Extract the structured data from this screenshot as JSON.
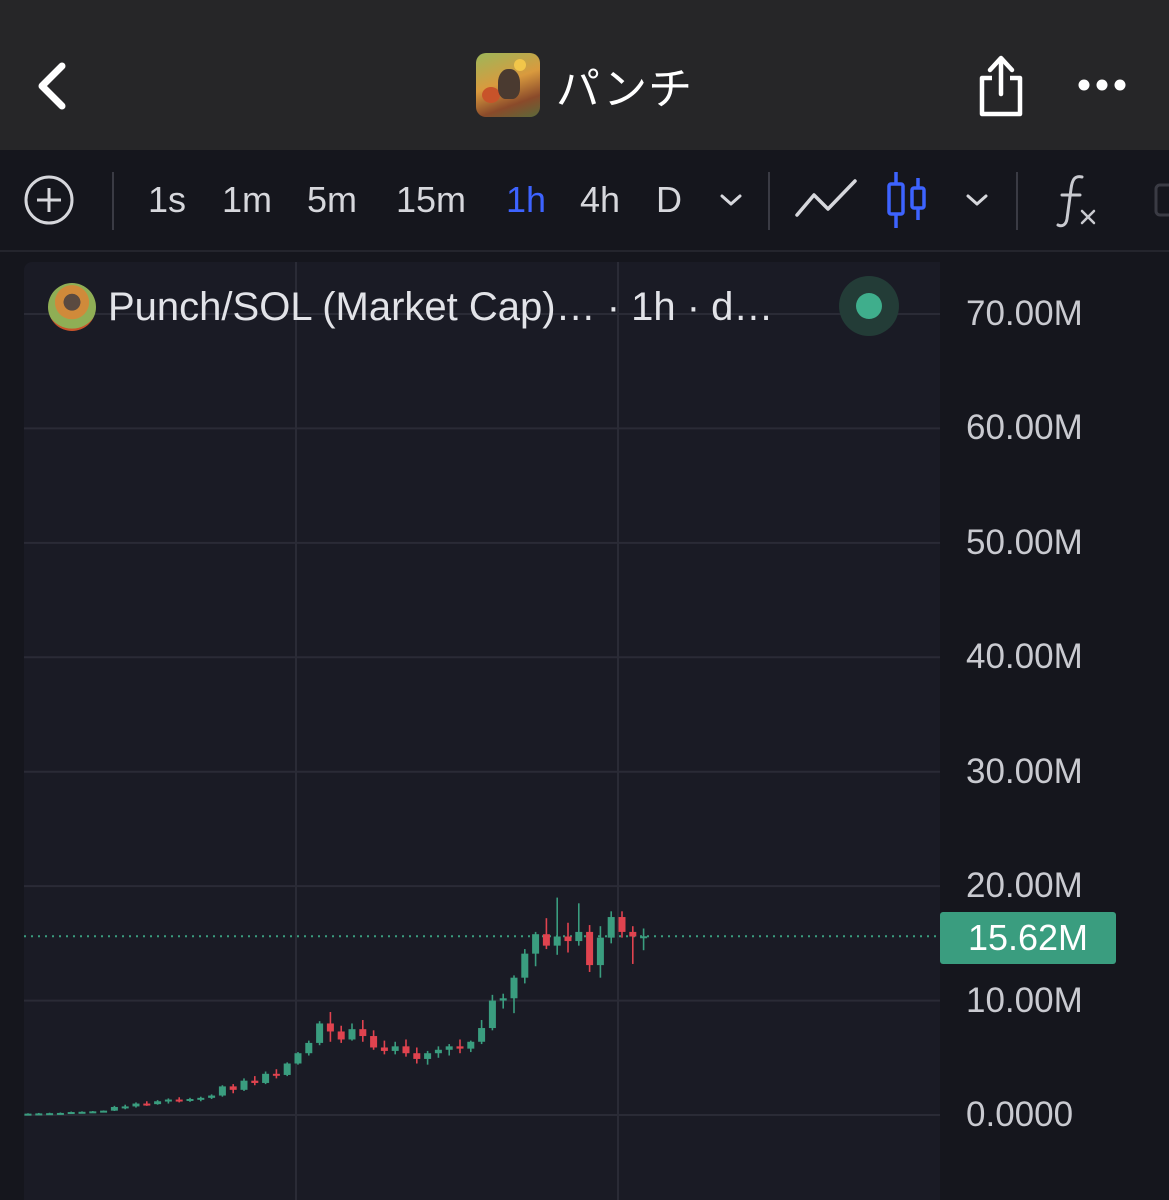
{
  "header": {
    "title": "パンチ",
    "back_icon": "chevron-left-icon",
    "share_icon": "share-icon",
    "more_icon": "ellipsis-icon"
  },
  "toolbar": {
    "add_icon": "add-circle-icon",
    "timeframes": [
      {
        "label": "1s",
        "active": false
      },
      {
        "label": "1m",
        "active": false
      },
      {
        "label": "5m",
        "active": false
      },
      {
        "label": "15m",
        "active": false
      },
      {
        "label": "1h",
        "active": true
      },
      {
        "label": "4h",
        "active": false
      },
      {
        "label": "D",
        "active": false
      }
    ],
    "timeframe_dropdown_icon": "chevron-down-icon",
    "line_chart_icon": "line-chart-icon",
    "candle_chart_icon": "candlestick-icon",
    "chart_type_dropdown_icon": "chevron-down-icon",
    "indicators_icon": "function-icon",
    "active_color": "#3d63ff"
  },
  "chart": {
    "legend": "Punch/SOL (Market Cap)…  · 1h · d…",
    "live_indicator_color": "#3fae8c",
    "current_price_label": "15.62M",
    "up_color": "#3a9d7f",
    "down_color": "#e0434f"
  },
  "chart_data": {
    "type": "candlestick",
    "y_tick_labels": [
      "70.00M",
      "60.00M",
      "50.00M",
      "40.00M",
      "30.00M",
      "20.00M",
      "10.00M",
      "0.0000"
    ],
    "y_ticks": [
      70,
      60,
      50,
      40,
      30,
      20,
      10,
      0
    ],
    "ylim": [
      -3.5,
      75
    ],
    "units": "M",
    "current_price": 15.62,
    "candles": [
      [
        0.1,
        0.15,
        0.05,
        0.12
      ],
      [
        0.12,
        0.18,
        0.08,
        0.14
      ],
      [
        0.14,
        0.2,
        0.1,
        0.16
      ],
      [
        0.16,
        0.22,
        0.12,
        0.18
      ],
      [
        0.18,
        0.3,
        0.15,
        0.26
      ],
      [
        0.26,
        0.32,
        0.2,
        0.28
      ],
      [
        0.28,
        0.35,
        0.22,
        0.32
      ],
      [
        0.32,
        0.4,
        0.28,
        0.38
      ],
      [
        0.38,
        0.8,
        0.35,
        0.7
      ],
      [
        0.7,
        0.9,
        0.5,
        0.75
      ],
      [
        0.75,
        1.1,
        0.65,
        1.0
      ],
      [
        1.0,
        1.2,
        0.8,
        0.95
      ],
      [
        0.95,
        1.3,
        0.9,
        1.2
      ],
      [
        1.2,
        1.45,
        1.0,
        1.35
      ],
      [
        1.35,
        1.55,
        1.1,
        1.25
      ],
      [
        1.25,
        1.5,
        1.15,
        1.4
      ],
      [
        1.4,
        1.6,
        1.2,
        1.5
      ],
      [
        1.5,
        1.8,
        1.4,
        1.7
      ],
      [
        1.7,
        2.6,
        1.6,
        2.5
      ],
      [
        2.5,
        2.7,
        1.9,
        2.2
      ],
      [
        2.2,
        3.2,
        2.1,
        3.0
      ],
      [
        3.0,
        3.4,
        2.6,
        2.8
      ],
      [
        2.8,
        3.8,
        2.7,
        3.6
      ],
      [
        3.6,
        4.0,
        3.2,
        3.5
      ],
      [
        3.5,
        4.6,
        3.4,
        4.5
      ],
      [
        4.5,
        5.5,
        4.4,
        5.4
      ],
      [
        5.4,
        6.5,
        5.2,
        6.3
      ],
      [
        6.3,
        8.2,
        6.1,
        8.0
      ],
      [
        8.0,
        9.0,
        6.4,
        7.3
      ],
      [
        7.3,
        7.8,
        6.3,
        6.6
      ],
      [
        6.6,
        8.0,
        6.5,
        7.5
      ],
      [
        7.5,
        8.3,
        6.4,
        6.9
      ],
      [
        6.9,
        7.4,
        5.7,
        5.9
      ],
      [
        5.9,
        6.5,
        5.3,
        5.6
      ],
      [
        5.6,
        6.4,
        5.3,
        6.0
      ],
      [
        6.0,
        6.6,
        5.1,
        5.4
      ],
      [
        5.4,
        5.9,
        4.5,
        4.9
      ],
      [
        4.9,
        5.6,
        4.4,
        5.4
      ],
      [
        5.4,
        6.0,
        5.0,
        5.7
      ],
      [
        5.7,
        6.2,
        5.2,
        6.0
      ],
      [
        6.0,
        6.6,
        5.4,
        5.8
      ],
      [
        5.8,
        6.5,
        5.5,
        6.4
      ],
      [
        6.4,
        8.3,
        6.2,
        7.6
      ],
      [
        7.6,
        10.5,
        7.4,
        10.0
      ],
      [
        10.0,
        10.6,
        9.3,
        10.2
      ],
      [
        10.2,
        12.2,
        8.9,
        12.0
      ],
      [
        12.0,
        14.5,
        11.5,
        14.1
      ],
      [
        14.1,
        16.0,
        13.0,
        15.8
      ],
      [
        15.8,
        17.2,
        14.5,
        14.8
      ],
      [
        14.8,
        19.0,
        14.0,
        15.6
      ],
      [
        15.6,
        16.8,
        14.2,
        15.2
      ],
      [
        15.2,
        18.5,
        14.8,
        16.0
      ],
      [
        16.0,
        16.6,
        12.5,
        13.1
      ],
      [
        13.1,
        16.5,
        12.0,
        15.5
      ],
      [
        15.5,
        17.8,
        15.0,
        17.3
      ],
      [
        17.3,
        17.8,
        15.5,
        16.0
      ],
      [
        16.0,
        16.5,
        13.2,
        15.6
      ],
      [
        15.6,
        16.3,
        14.4,
        15.62
      ]
    ]
  }
}
